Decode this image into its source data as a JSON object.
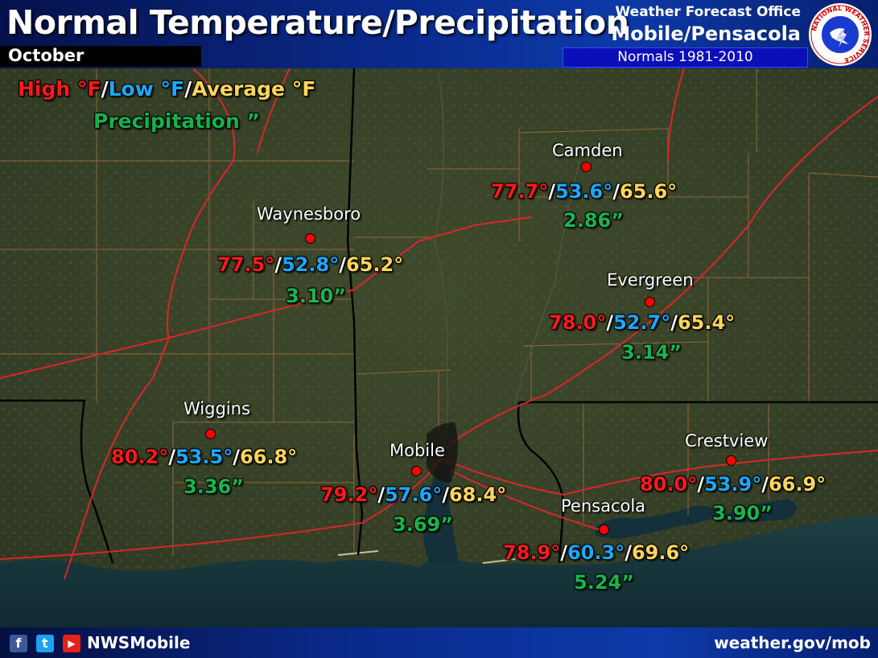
{
  "header": {
    "title": "Normal Temperature/Precipitation",
    "month": "October",
    "office_line1": "Weather Forecast Office",
    "office_line2": "Mobile/Pensacola",
    "normals_period": "Normals 1981-2010",
    "logo_text": "NATIONAL WEATHER SERVICE"
  },
  "legend": {
    "high": "High °F",
    "low": "Low °F",
    "average": "Average °F",
    "sep": "/",
    "precip": "Precipitation ”"
  },
  "stations": [
    {
      "name": "Camden",
      "high": "77.7°",
      "low": "53.6°",
      "avg": "65.6°",
      "precip": "2.86”"
    },
    {
      "name": "Waynesboro",
      "high": "77.5°",
      "low": "52.8°",
      "avg": "65.2°",
      "precip": "3.10”"
    },
    {
      "name": "Evergreen",
      "high": "78.0°",
      "low": "52.7°",
      "avg": "65.4°",
      "precip": "3.14”"
    },
    {
      "name": "Wiggins",
      "high": "80.2°",
      "low": "53.5°",
      "avg": "66.8°",
      "precip": "3.36”"
    },
    {
      "name": "Mobile",
      "high": "79.2°",
      "low": "57.6°",
      "avg": "68.4°",
      "precip": "3.69”"
    },
    {
      "name": "Crestview",
      "high": "80.0°",
      "low": "53.9°",
      "avg": "66.9°",
      "precip": "3.90”"
    },
    {
      "name": "Pensacola",
      "high": "78.9°",
      "low": "60.3°",
      "avg": "69.6°",
      "precip": "5.24”"
    }
  ],
  "footer": {
    "handle": "NWSMobile",
    "website": "weather.gov/mob",
    "icons": [
      "facebook-icon",
      "twitter-icon",
      "youtube-icon"
    ]
  },
  "colors": {
    "high": "#ff1a1a",
    "low": "#1ea7ff",
    "average": "#ffd55a",
    "precip": "#18b54b",
    "header_bg": "#0a2a8c",
    "station_dot": "#ff0000"
  }
}
